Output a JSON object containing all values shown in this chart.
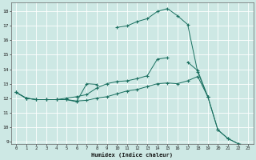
{
  "xlabel": "Humidex (Indice chaleur)",
  "background_color": "#cde8e4",
  "grid_color": "#ffffff",
  "line_color": "#1a7060",
  "xlim": [
    -0.5,
    23.5
  ],
  "ylim": [
    8.8,
    18.6
  ],
  "yticks": [
    9,
    10,
    11,
    12,
    13,
    14,
    15,
    16,
    17,
    18
  ],
  "xticks": [
    0,
    1,
    2,
    3,
    4,
    5,
    6,
    7,
    8,
    9,
    10,
    11,
    12,
    13,
    14,
    15,
    16,
    17,
    18,
    19,
    20,
    21,
    22,
    23
  ],
  "line1_y": [
    12.4,
    12.0,
    11.9,
    11.9,
    11.9,
    11.9,
    11.75,
    13.0,
    12.95,
    null,
    16.9,
    17.0,
    17.3,
    17.5,
    18.0,
    18.2,
    17.7,
    17.1,
    13.8,
    12.1,
    9.8,
    9.2,
    8.85,
    null
  ],
  "line2_y": [
    12.4,
    12.0,
    11.9,
    11.9,
    11.9,
    12.0,
    12.1,
    12.25,
    12.7,
    13.0,
    13.15,
    13.2,
    13.35,
    13.55,
    14.7,
    14.8,
    null,
    14.5,
    13.9,
    12.1,
    null,
    null,
    null,
    null
  ],
  "line3_y": [
    12.4,
    12.0,
    11.9,
    11.9,
    11.9,
    11.9,
    11.8,
    11.85,
    12.0,
    12.1,
    12.3,
    12.5,
    12.6,
    12.8,
    13.0,
    13.05,
    13.0,
    13.2,
    13.5,
    12.1,
    9.8,
    9.2,
    8.85,
    8.7
  ]
}
